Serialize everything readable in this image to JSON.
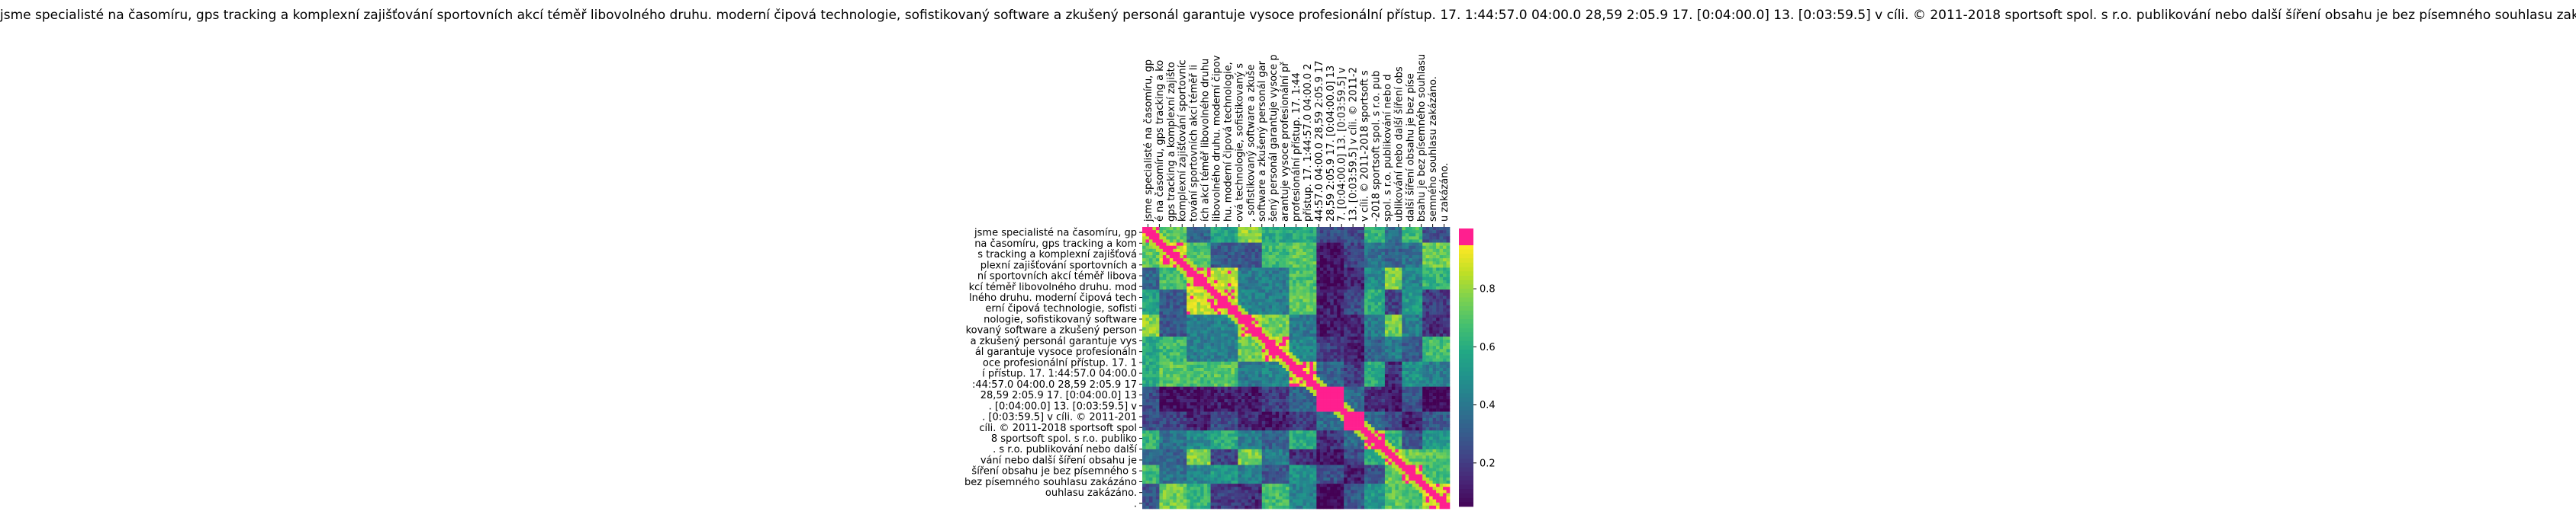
{
  "chart_data": {
    "type": "heatmap",
    "title": "jsme specialisté na časomíru, gps tracking a komplexní zajišťování sportovních akcí téměř libovolného druhu. moderní čipová technologie, sofistikovaný software a zkušený personál garantuje vysoce profesionální přístup. 17. 1:44:57.0 04:00.0 28,59 2:05.9 17. [0:04:00.0] 13. [0:03:59.5] v cíli. © 2011-2018 sportsoft spol. s r.o. publikování nebo další šíření obsahu je bez písemného souhlasu zakázáno.",
    "xlabel": "",
    "ylabel": "",
    "y_tick_labels": [
      "jsme specialisté na časomíru, gp",
      "na časomíru, gps tracking a kom",
      "s tracking a komplexní zajišťová",
      "plexní zajišťování sportovních a",
      "ní sportovních akcí téměř libova",
      "kcí téměř libovolného druhu. mod",
      "lného druhu. moderní čipová tech",
      "erní čipová technologie, sofisti",
      "nologie, sofistikovaný software",
      "kovaný software a zkušený person",
      "a zkušený personál garantuje vys",
      "ál garantuje vysoce profesionáln",
      "oce profesionální přístup. 17. 1",
      "í přístup. 17. 1:44:57.0 04:00.0",
      ":44:57.0 04:00.0 28,59 2:05.9 17",
      "28,59 2:05.9 17. [0:04:00.0] 13",
      ". [0:04:00.0] 13. [0:03:59.5] v",
      ". [0:03:59.5] v cíli. © 2011-201",
      "cíli. © 2011-2018 sportsoft spol",
      "8 sportsoft spol. s r.o. publiko",
      ". s r.o. publikování nebo další",
      "vání nebo další šíření obsahu je",
      "šíření obsahu je bez písemného s",
      "bez písemného souhlasu zakázáno",
      "ouhlasu zakázáno.",
      "."
    ],
    "x_tick_labels": [
      "jsme specialisté na časomíru, gp",
      "é na časomíru, gps tracking a ko",
      "gps tracking a komplexní zajišto",
      "komplexní zajišťování sportovníc",
      "tování sportovních akcí téměř li",
      "ích akcí téměř libovolného druhu",
      "libovolného druhu. moderní čipov",
      "hu. moderní čipová technologie,",
      "ová technologie, sofistikovaný s",
      ", sofistikovaný software a zkuše",
      "software a zkušený personál gar",
      "šený personál garantuje vysoce p",
      "arantuje vysoce profesionální př",
      "profesionální přístup. 17. 1:44",
      "přístup. 17. 1:44:57.0 04:00.0 2",
      "44:57.0 04:00.0 28,59 2:05.9 17",
      "28,59 2:05.9 17. [0:04:00.0] 13",
      "7. [0:04:00.0] 13. [0:03:59.5] v",
      "13. [0:03:59.5] v cíli. © 2011-2",
      "v cíli. © 2011-2018 sportsoft s",
      "-2018 sportsoft spol. s r.o. pub",
      "spol. s r.o. publikování nebo d",
      "ublikování nebo další šíření obs",
      "další šíření obsahu je bez píse",
      "bsahu je bez písemného souhlasu",
      "semného souhlasu zakázáno.",
      "u zakázáno."
    ],
    "colorbar": {
      "ticks": [
        0.2,
        0.4,
        0.6,
        0.8
      ],
      "range": [
        0.05,
        0.95
      ],
      "over_color": "#ff1f8f"
    },
    "colormap": "viridis",
    "grid": false,
    "blocks": [
      [
        0,
        0.06
      ],
      [
        0.06,
        0.14
      ],
      [
        0.14,
        0.22
      ],
      [
        0.22,
        0.31
      ],
      [
        0.31,
        0.39
      ],
      [
        0.39,
        0.48
      ],
      [
        0.48,
        0.57
      ],
      [
        0.57,
        0.66
      ],
      [
        0.66,
        0.72
      ],
      [
        0.72,
        0.79
      ],
      [
        0.79,
        0.85
      ],
      [
        0.85,
        0.91
      ],
      [
        0.91,
        1.0
      ]
    ]
  }
}
